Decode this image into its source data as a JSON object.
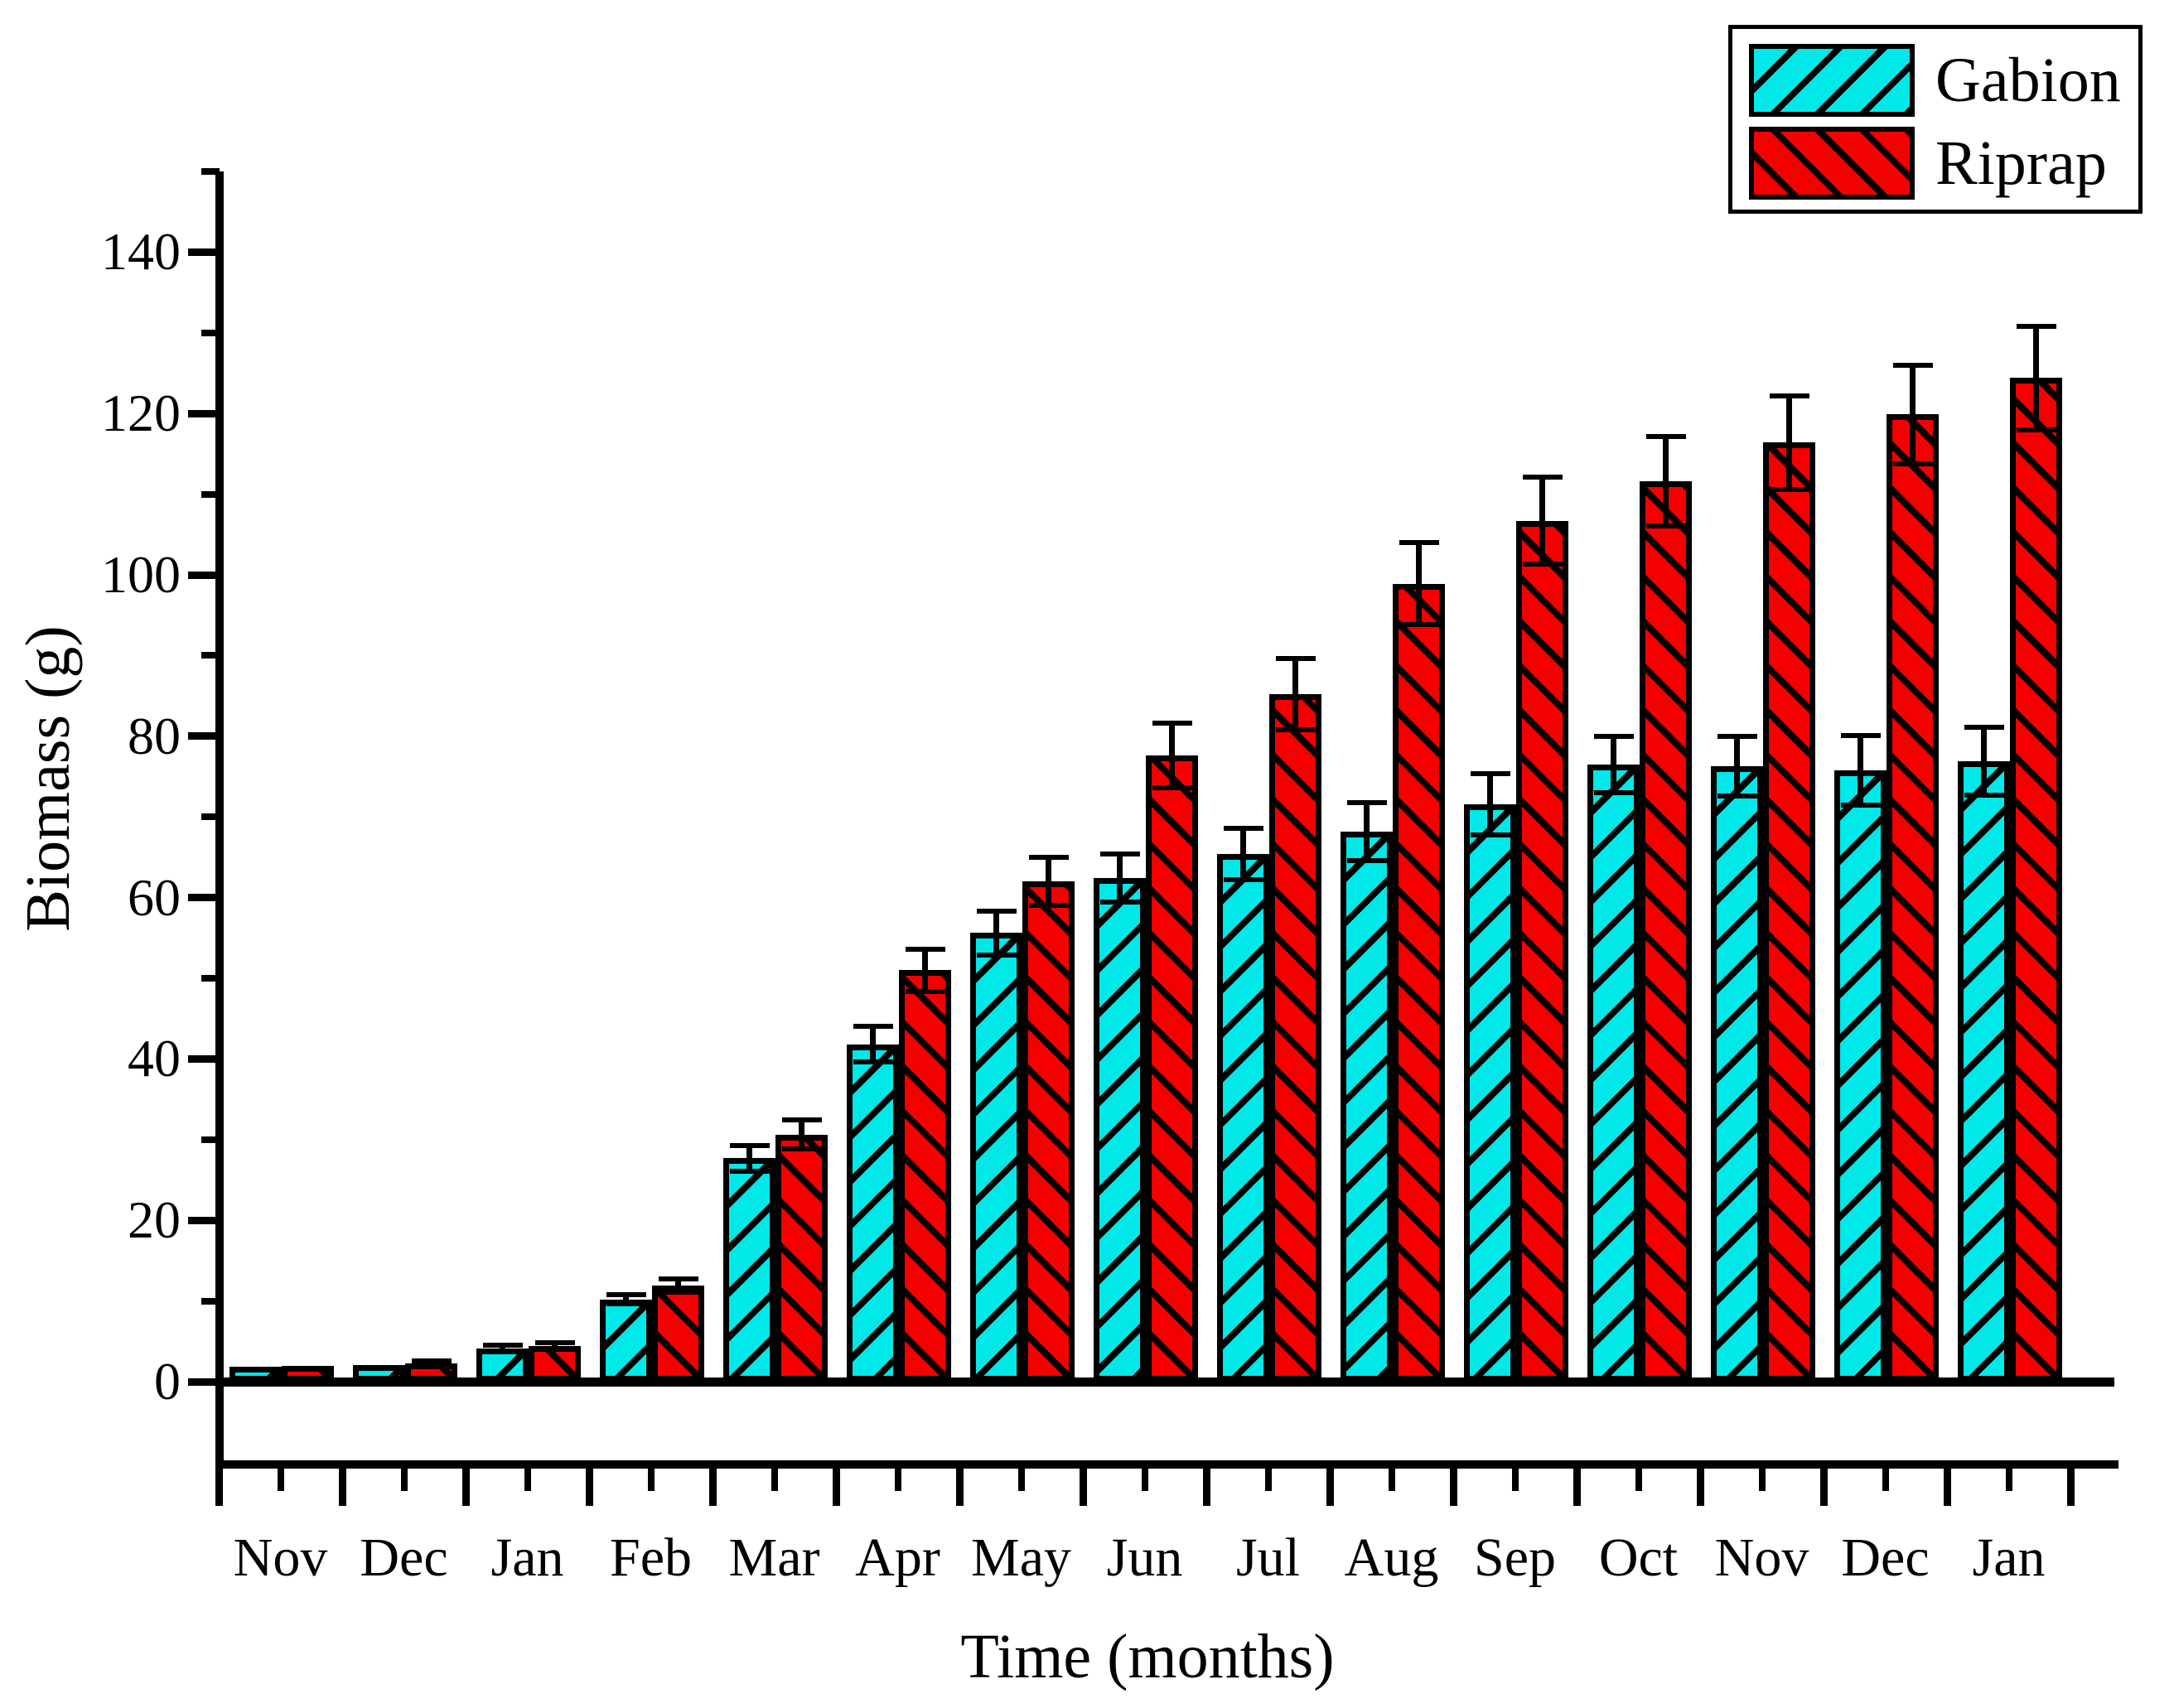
{
  "chart_data": {
    "type": "bar",
    "title": "",
    "xlabel": "Time (months)",
    "ylabel": "Biomass (g)",
    "categories": [
      "Nov",
      "Dec",
      "Jan",
      "Feb",
      "Mar",
      "Apr",
      "May",
      "Jun",
      "Jul",
      "Aug",
      "Sep",
      "Oct",
      "Nov",
      "Dec",
      "Jan"
    ],
    "series": [
      {
        "name": "Gabion",
        "color": "#00E8E8",
        "hatch": "/",
        "values": [
          1.8,
          2.1,
          4.1,
          10.2,
          27.7,
          41.8,
          55.6,
          62.4,
          65.4,
          68.2,
          71.6,
          76.5,
          76.3,
          75.8,
          76.9
        ],
        "errors": [
          0.2,
          0.2,
          0.4,
          0.6,
          1.6,
          2.2,
          2.7,
          3.0,
          3.2,
          3.6,
          3.8,
          3.5,
          3.7,
          4.3,
          4.2
        ]
      },
      {
        "name": "Riprap",
        "color": "#F40000",
        "hatch": "\\",
        "values": [
          1.9,
          2.3,
          4.4,
          11.9,
          30.6,
          51.0,
          62.0,
          77.6,
          85.2,
          98.9,
          106.7,
          111.6,
          116.4,
          119.9,
          124.4
        ],
        "errors": [
          0.2,
          0.3,
          0.4,
          0.8,
          1.8,
          2.6,
          3.0,
          4.0,
          4.4,
          5.1,
          5.4,
          5.5,
          5.8,
          6.1,
          6.4
        ]
      }
    ],
    "ylim": [
      -10,
      150
    ],
    "yticks_major": [
      0,
      20,
      40,
      60,
      80,
      100,
      120,
      140
    ],
    "ytick_minor_step": 10,
    "grid": false,
    "error_bars": true,
    "legend_position": "top-right",
    "outline_color": "#000000",
    "background_color": "#FFFFFF"
  }
}
